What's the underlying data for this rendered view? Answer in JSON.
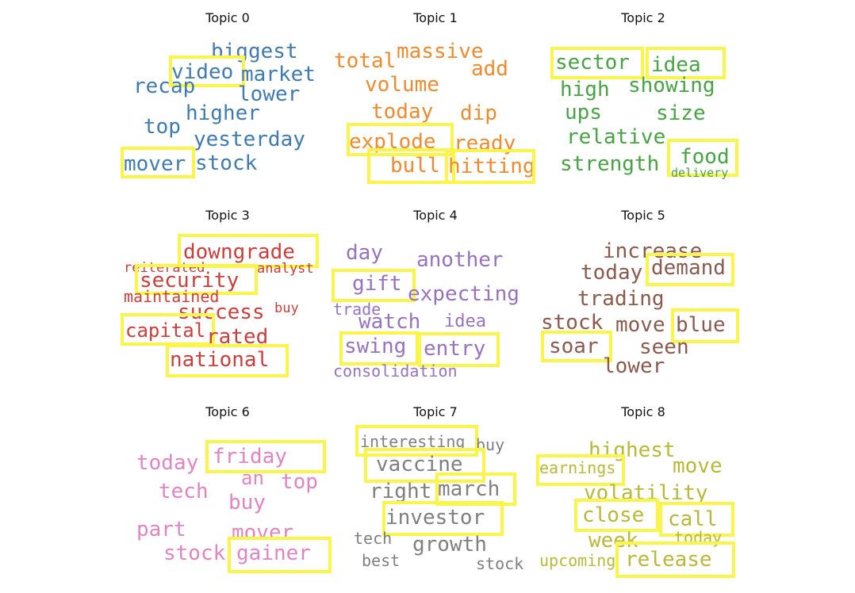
{
  "topics": [
    {
      "title": "Topic 0",
      "color": "#3f7bb0",
      "words": [
        {
          "text": "biggest"
        },
        {
          "text": "video",
          "highlighted": true
        },
        {
          "text": "market"
        },
        {
          "text": "recap"
        },
        {
          "text": "lower"
        },
        {
          "text": "higher"
        },
        {
          "text": "top"
        },
        {
          "text": "yesterday"
        },
        {
          "text": "mover",
          "highlighted": true
        },
        {
          "text": "stock"
        }
      ]
    },
    {
      "title": "Topic 1",
      "color": "#ee8a2f",
      "words": [
        {
          "text": "total"
        },
        {
          "text": "massive"
        },
        {
          "text": "add"
        },
        {
          "text": "volume"
        },
        {
          "text": "today"
        },
        {
          "text": "dip"
        },
        {
          "text": "explode",
          "highlighted": true
        },
        {
          "text": "ready"
        },
        {
          "text": "bull",
          "highlighted": true
        },
        {
          "text": "hitting",
          "highlighted": true
        }
      ]
    },
    {
      "title": "Topic 2",
      "color": "#47a344",
      "words": [
        {
          "text": "sector",
          "highlighted": true
        },
        {
          "text": "idea",
          "highlighted": true
        },
        {
          "text": "high"
        },
        {
          "text": "showing"
        },
        {
          "text": "ups"
        },
        {
          "text": "size"
        },
        {
          "text": "relative"
        },
        {
          "text": "strength"
        },
        {
          "text": "food",
          "highlighted": true
        },
        {
          "text": "delivery"
        }
      ]
    },
    {
      "title": "Topic 3",
      "color": "#c8403c",
      "words": [
        {
          "text": "downgrade",
          "highlighted": true
        },
        {
          "text": "reiterated"
        },
        {
          "text": "analyst"
        },
        {
          "text": "security",
          "highlighted": true
        },
        {
          "text": "maintained"
        },
        {
          "text": "success"
        },
        {
          "text": "buy"
        },
        {
          "text": "capital",
          "highlighted": true
        },
        {
          "text": "rated"
        },
        {
          "text": "national",
          "highlighted": true
        }
      ]
    },
    {
      "title": "Topic 4",
      "color": "#9773be",
      "words": [
        {
          "text": "day"
        },
        {
          "text": "another"
        },
        {
          "text": "gift",
          "highlighted": true
        },
        {
          "text": "expecting"
        },
        {
          "text": "trade"
        },
        {
          "text": "watch"
        },
        {
          "text": "idea"
        },
        {
          "text": "swing",
          "highlighted": true
        },
        {
          "text": "entry",
          "highlighted": true
        },
        {
          "text": "consolidation"
        }
      ]
    },
    {
      "title": "Topic 5",
      "color": "#8a5a4e",
      "words": [
        {
          "text": "increase"
        },
        {
          "text": "today"
        },
        {
          "text": "demand",
          "highlighted": true
        },
        {
          "text": "trading"
        },
        {
          "text": "stock"
        },
        {
          "text": "move"
        },
        {
          "text": "blue",
          "highlighted": true
        },
        {
          "text": "soar",
          "highlighted": true
        },
        {
          "text": "seen"
        },
        {
          "text": "lower"
        }
      ]
    },
    {
      "title": "Topic 6",
      "color": "#df85c2",
      "words": [
        {
          "text": "today"
        },
        {
          "text": "friday",
          "highlighted": true
        },
        {
          "text": "an"
        },
        {
          "text": "top"
        },
        {
          "text": "tech"
        },
        {
          "text": "buy"
        },
        {
          "text": "part"
        },
        {
          "text": "mover"
        },
        {
          "text": "stock"
        },
        {
          "text": "gainer",
          "highlighted": true
        }
      ]
    },
    {
      "title": "Topic 7",
      "color": "#7f7f7f",
      "words": [
        {
          "text": "interesting",
          "highlighted": true
        },
        {
          "text": "buy"
        },
        {
          "text": "vaccine",
          "highlighted": true
        },
        {
          "text": "right"
        },
        {
          "text": "march",
          "highlighted": true
        },
        {
          "text": "investor",
          "highlighted": true
        },
        {
          "text": "tech"
        },
        {
          "text": "growth"
        },
        {
          "text": "best"
        },
        {
          "text": "stock"
        }
      ]
    },
    {
      "title": "Topic 8",
      "color": "#b8b83a",
      "words": [
        {
          "text": "highest"
        },
        {
          "text": "earnings",
          "highlighted": true
        },
        {
          "text": "move"
        },
        {
          "text": "volatility"
        },
        {
          "text": "close",
          "highlighted": true
        },
        {
          "text": "call",
          "highlighted": true
        },
        {
          "text": "week"
        },
        {
          "text": "today"
        },
        {
          "text": "upcoming"
        },
        {
          "text": "release",
          "highlighted": true
        }
      ]
    }
  ]
}
